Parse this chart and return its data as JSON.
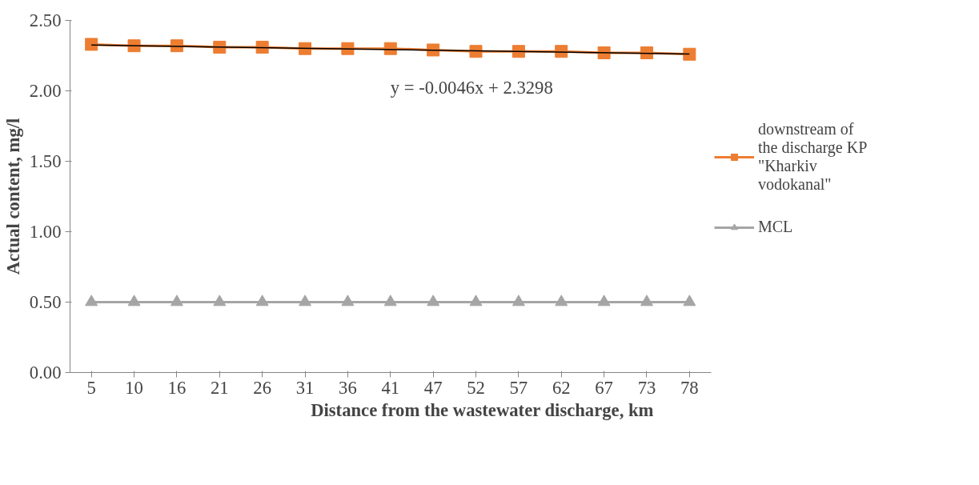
{
  "chart_data": {
    "type": "line",
    "xlabel": "Distance from the wastewater discharge, km",
    "ylabel": "Actual content, mg/l",
    "categories": [
      "5",
      "10",
      "16",
      "21",
      "26",
      "31",
      "36",
      "41",
      "47",
      "52",
      "57",
      "62",
      "67",
      "73",
      "78"
    ],
    "series": [
      {
        "name": "downstream of the discharge KP \"Kharkiv vodokanal\"",
        "color": "#ed7d31",
        "marker": "square",
        "values": [
          2.33,
          2.32,
          2.32,
          2.31,
          2.31,
          2.3,
          2.3,
          2.3,
          2.29,
          2.28,
          2.28,
          2.28,
          2.27,
          2.27,
          2.26
        ]
      },
      {
        "name": "MCL",
        "color": "#a5a5a5",
        "marker": "triangle",
        "values": [
          0.5,
          0.5,
          0.5,
          0.5,
          0.5,
          0.5,
          0.5,
          0.5,
          0.5,
          0.5,
          0.5,
          0.5,
          0.5,
          0.5,
          0.5
        ]
      },
      {
        "color": "#000000",
        "marker": "none",
        "x": [
          "5",
          "78"
        ],
        "values": [
          2.325,
          2.261
        ]
      }
    ],
    "ylim": [
      0,
      2.5
    ],
    "yticks": [
      {
        "value": 0,
        "label": "0.00"
      },
      {
        "value": 0.5,
        "label": "0.50"
      },
      {
        "value": 1,
        "label": "1.00"
      },
      {
        "value": 1.5,
        "label": "1.50"
      },
      {
        "value": 2,
        "label": "2.00"
      },
      {
        "value": 2.5,
        "label": "2.50"
      }
    ],
    "annotations": [
      "y = -0.0046x + 2.3298"
    ],
    "legend": "right",
    "grid": false
  }
}
